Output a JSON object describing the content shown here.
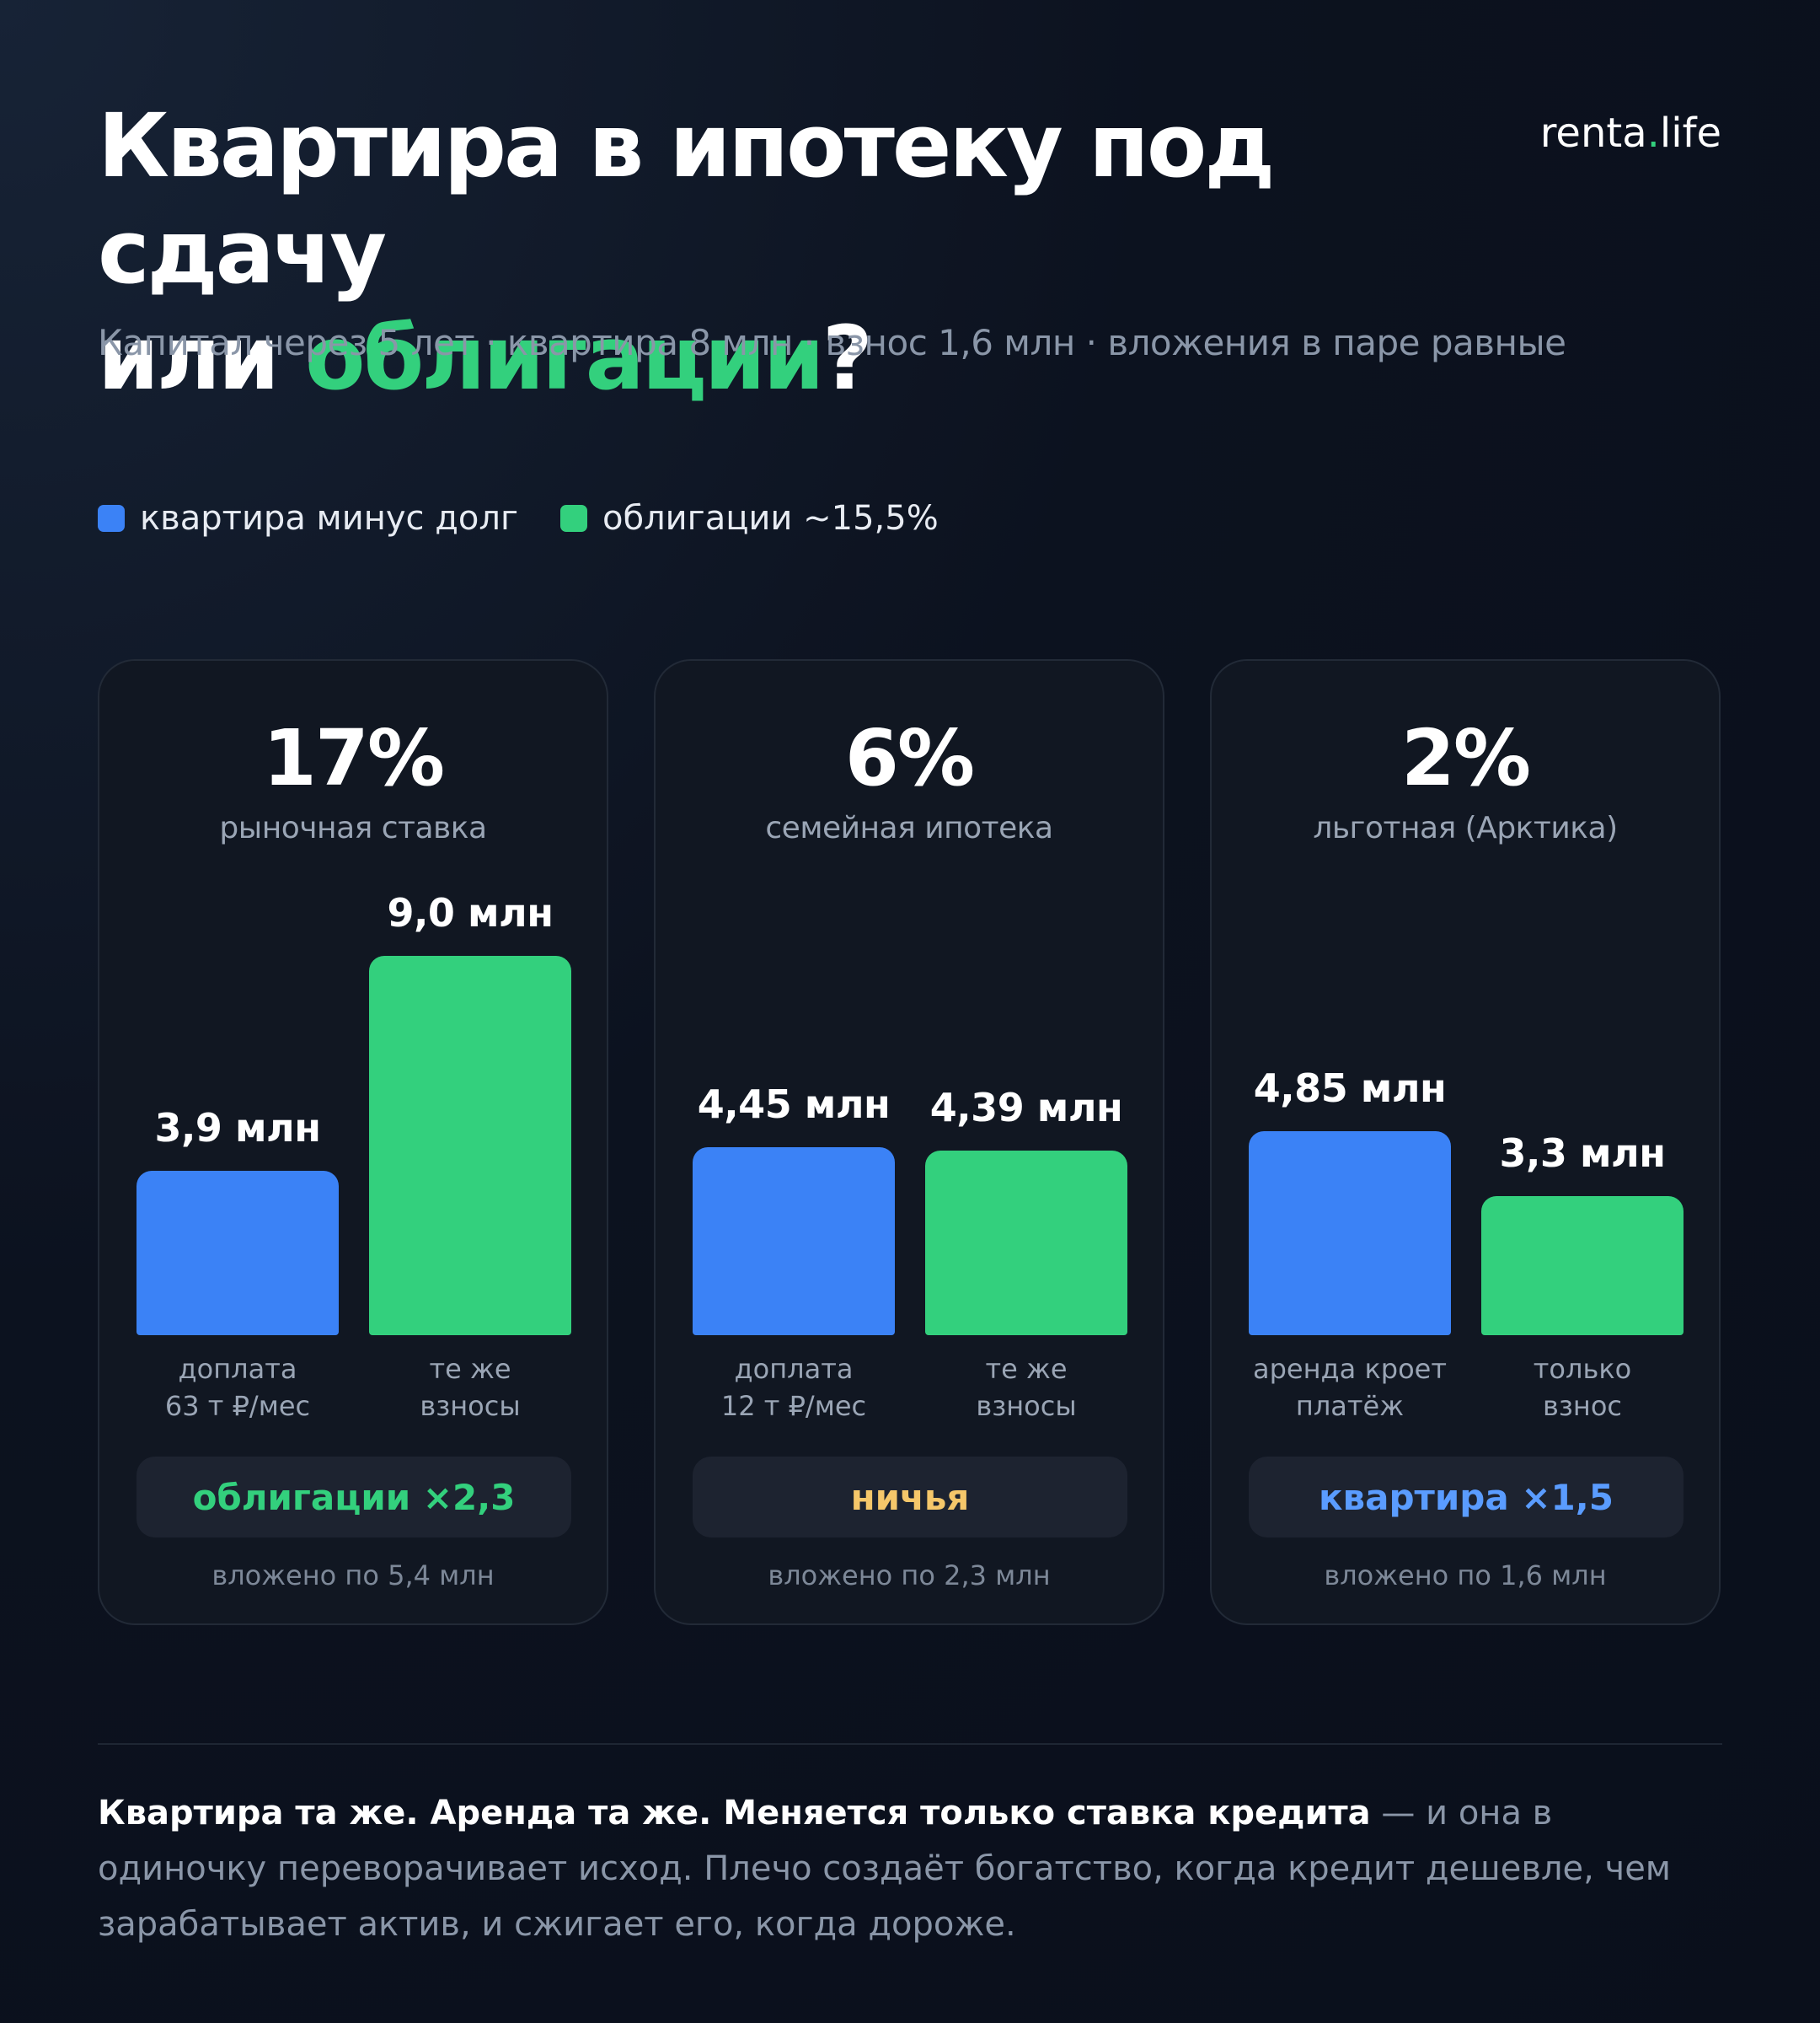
{
  "header": {
    "title_line1": "Квартира в ипотеку под сдачу",
    "title_line2_prefix": "или ",
    "title_line2_accent": "облигации",
    "title_line2_suffix": "?",
    "brand_name": "renta",
    "brand_dot": ".",
    "brand_tld": "life",
    "subtitle": "Капитал через 5 лет · квартира 8 млн · взнос 1,6 млн · вложения в паре равные"
  },
  "colors": {
    "apartment": "#3b82f6",
    "bonds": "#33d07d",
    "draw": "#f5c76a"
  },
  "legend": [
    {
      "label": "квартира минус долг"
    },
    {
      "label": "облигации ~15,5%"
    }
  ],
  "chart_data": {
    "type": "bar",
    "unit": "млн",
    "series": [
      {
        "name": "квартира минус долг",
        "values": [
          3.9,
          4.45,
          4.85
        ]
      },
      {
        "name": "облигации ~15,5%",
        "values": [
          9.0,
          4.39,
          3.3
        ]
      }
    ],
    "panels": [
      {
        "rate": "17%",
        "rate_label": "рыночная ставка",
        "bars": [
          {
            "value": 3.9,
            "label": "3,9 млн",
            "caption_line1": "доплата",
            "caption_line2": "63 т ₽/мес"
          },
          {
            "value": 9.0,
            "label": "9,0 млн",
            "caption_line1": "те же",
            "caption_line2": "взносы"
          }
        ],
        "verdict": "облигации ×2,3",
        "verdict_color": "#33d07d",
        "invested": "вложено по 5,4 млн"
      },
      {
        "rate": "6%",
        "rate_label": "семейная ипотека",
        "bars": [
          {
            "value": 4.45,
            "label": "4,45 млн",
            "caption_line1": "доплата",
            "caption_line2": "12 т ₽/мес"
          },
          {
            "value": 4.39,
            "label": "4,39 млн",
            "caption_line1": "те же",
            "caption_line2": "взносы"
          }
        ],
        "verdict": "ничья",
        "verdict_color": "#f5c76a",
        "invested": "вложено по 2,3 млн"
      },
      {
        "rate": "2%",
        "rate_label": "льготная (Арктика)",
        "bars": [
          {
            "value": 4.85,
            "label": "4,85 млн",
            "caption_line1": "аренда кроет",
            "caption_line2": "платёж"
          },
          {
            "value": 3.3,
            "label": "3,3 млн",
            "caption_line1": "только",
            "caption_line2": "взнос"
          }
        ],
        "verdict": "квартира ×1,5",
        "verdict_color": "#5a9cff",
        "invested": "вложено по 1,6 млн"
      }
    ]
  },
  "footer": {
    "strong": "Квартира та же. Аренда та же. Меняется только ставка кредита",
    "rest": " — и она в одиночку переворачивает исход. Плечо создаёт богатство, когда кредит дешевле, чем зарабатывает актив, и сжигает его, когда дороже."
  }
}
